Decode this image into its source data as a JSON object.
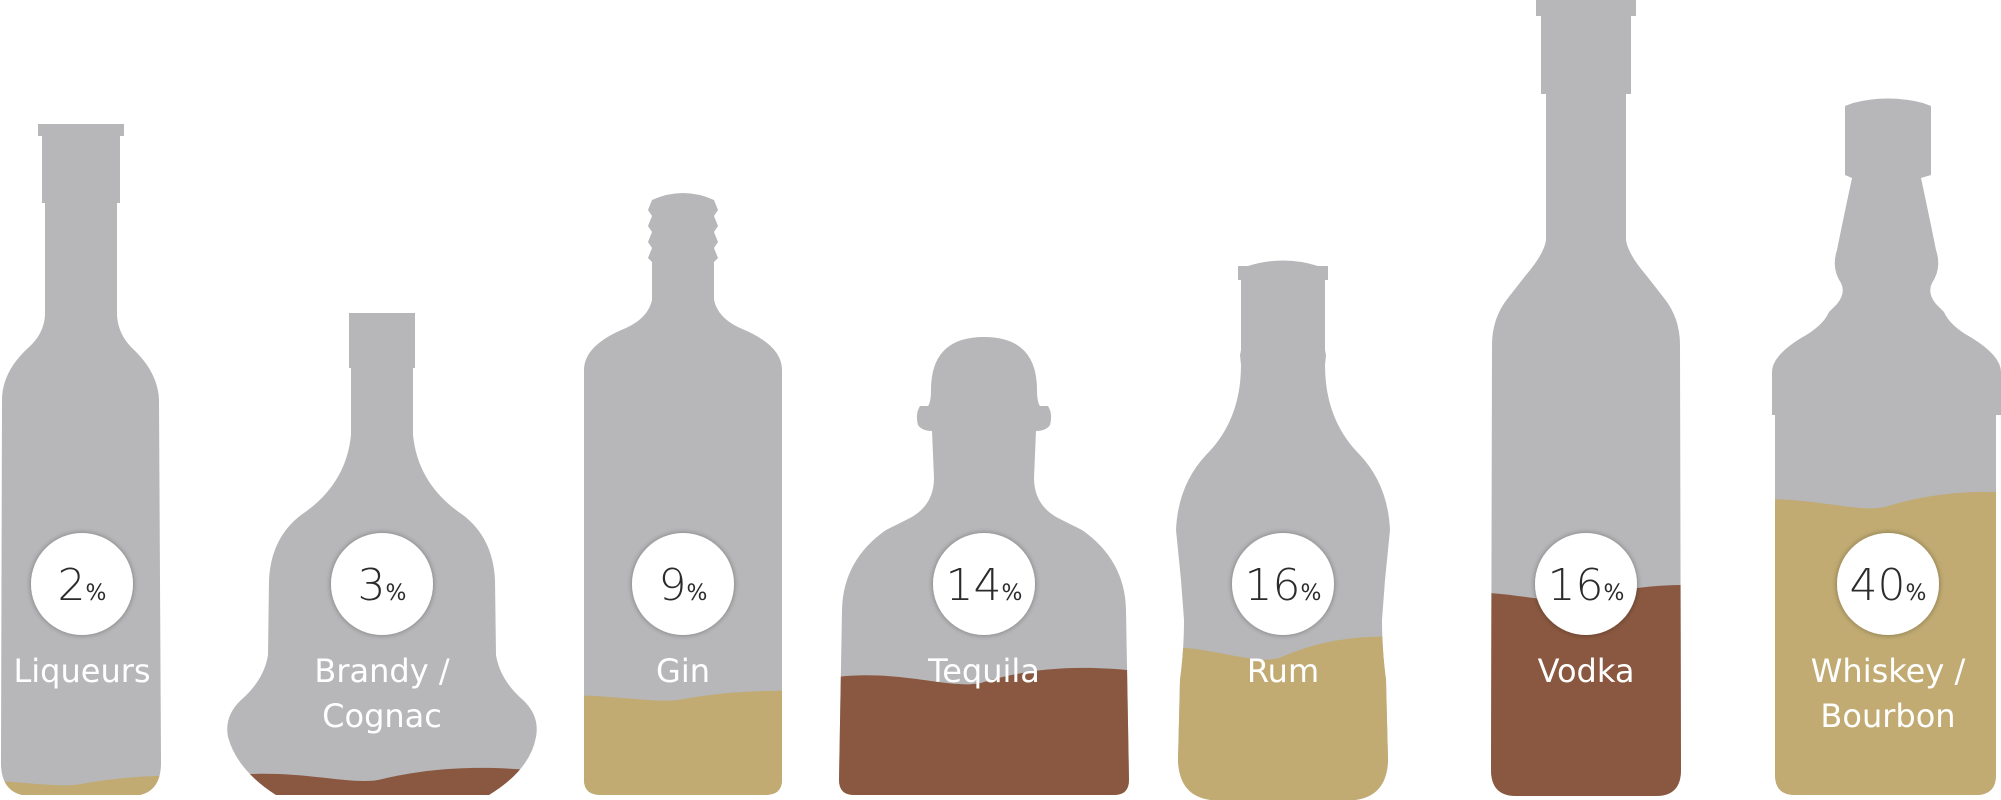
{
  "chart_data": {
    "type": "bar",
    "title": "",
    "xlabel": "",
    "ylabel": "",
    "ylim": [
      0,
      100
    ],
    "unit": "%",
    "categories": [
      "Liqueurs",
      "Brandy / Cognac",
      "Gin",
      "Tequila",
      "Rum",
      "Vodka",
      "Whiskey / Bourbon"
    ],
    "label_lines": [
      [
        "Liqueurs"
      ],
      [
        "Brandy /",
        "Cognac"
      ],
      [
        "Gin"
      ],
      [
        "Tequila"
      ],
      [
        "Rum"
      ],
      [
        "Vodka"
      ],
      [
        "Whiskey /",
        "Bourbon"
      ]
    ],
    "values": [
      2,
      3,
      9,
      14,
      16,
      16,
      40
    ],
    "value_labels": [
      "2",
      "3",
      "9",
      "14",
      "16",
      "16",
      "40"
    ],
    "fill_colors": [
      "#C1AB72",
      "#8A5840",
      "#C1AB72",
      "#8A5840",
      "#C1AB72",
      "#8A5840",
      "#C1AB72"
    ]
  },
  "colors": {
    "bottle": "#B7B7B9",
    "light_liquid": "#C1AB72",
    "dark_liquid": "#8A5840",
    "badge": "#FFFFFF",
    "label_text": "#FFFFFF",
    "badge_text": "#2B2B2B"
  }
}
